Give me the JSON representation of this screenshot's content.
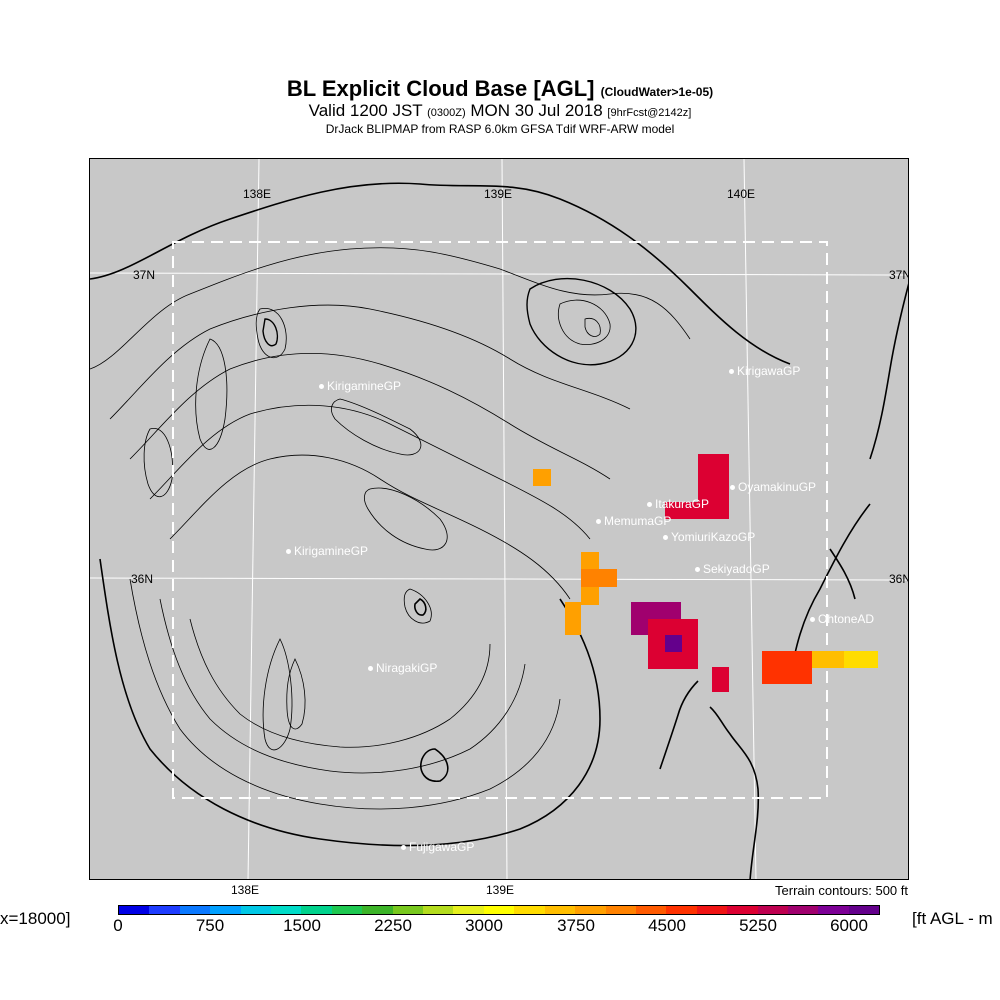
{
  "header": {
    "title": "BL Explicit Cloud Base [AGL]",
    "title_note": "(CloudWater>1e-05)",
    "valid_prefix": "Valid 1200 JST",
    "valid_utc": "(0300Z)",
    "valid_date": "MON 30 Jul 2018",
    "forecast": "[9hrFcst@2142z]",
    "model": "DrJack BLIPMAP from RASP 6.0km GFSA Tdif WRF-ARW model"
  },
  "map": {
    "lon_labels_top": [
      "138E",
      "139E",
      "140E"
    ],
    "lon_labels_bottom": [
      "138E",
      "139E"
    ],
    "lat_labels_left": [
      "37N",
      "36N"
    ],
    "lat_labels_right": [
      "37N",
      "36N"
    ],
    "stations": [
      "KirigamineGP",
      "KirigawaGP",
      "OyamakinuGP",
      "ItakuraGP",
      "MemumaGP",
      "YomiuriKazoGP",
      "SekiyadoGP",
      "OhtoneAD",
      "KirigamineGP",
      "NiragakiGP",
      "FujigawaGP"
    ],
    "terrain_note": "Terrain contours: 500 ft",
    "colors": {
      "land": "#c8c8c8",
      "contour": "#000000",
      "station_text": "#ffffff"
    }
  },
  "colorbar": {
    "left_note": "x=18000]",
    "right_note": "[ft AGL - m",
    "tick_labels": [
      "0",
      "750",
      "1500",
      "2250",
      "3000",
      "3750",
      "4500",
      "5250",
      "6000"
    ],
    "colors": [
      "#0000e6",
      "#1e3cff",
      "#0a78ff",
      "#00a0ff",
      "#00c8e6",
      "#00dcc8",
      "#00d28c",
      "#1ec850",
      "#3cb428",
      "#78c81e",
      "#b4dc1e",
      "#e6f01e",
      "#ffff00",
      "#ffdc00",
      "#ffbe00",
      "#ffa000",
      "#ff8200",
      "#ff5a00",
      "#ff3200",
      "#f01414",
      "#dc0032",
      "#be0050",
      "#a0006e",
      "#7d0096",
      "#64008c"
    ]
  }
}
